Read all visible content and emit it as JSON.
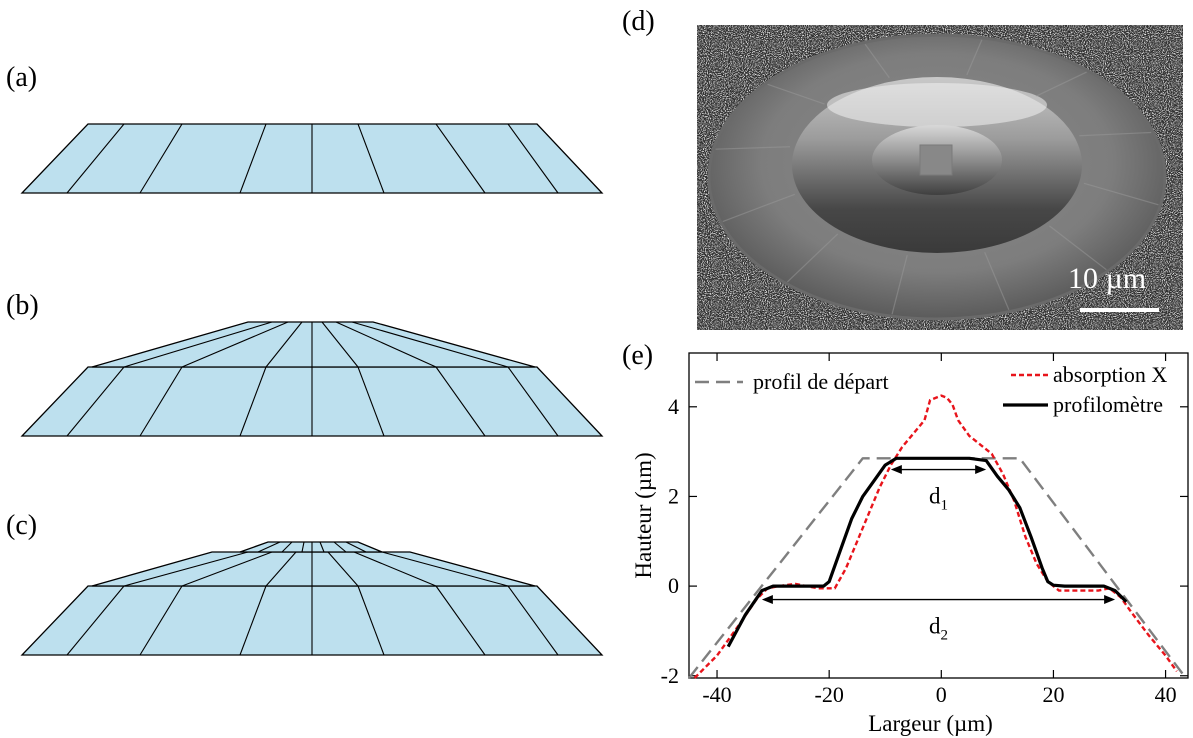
{
  "panels": {
    "a": "(a)",
    "b": "(b)",
    "c": "(c)",
    "d": "(d)",
    "e": "(e)"
  },
  "colors": {
    "frustum_fill": "#bde0ee",
    "dashed_series": "#7f7f7f",
    "red_series": "#e8141b",
    "black_series": "#000000"
  },
  "micrograph": {
    "scale_bar_label": "10 µm"
  },
  "chart_data": {
    "type": "line",
    "xlabel": "Largeur (µm)",
    "ylabel": "Hauteur (µm)",
    "xlim": [
      -45,
      44
    ],
    "ylim": [
      -2.05,
      5.2
    ],
    "xticks": [
      "-40",
      "-20",
      "0",
      "20",
      "40"
    ],
    "yticks": [
      "-2",
      "0",
      "2",
      "4"
    ],
    "legend_position": "top",
    "annotations": {
      "d1": "d",
      "d1_sub": "1",
      "d2": "d",
      "d2_sub": "2"
    },
    "series": [
      {
        "name": "profil de départ",
        "style": "dashed",
        "color": "#7f7f7f",
        "x": [
          -45,
          -14,
          14,
          43
        ],
        "y": [
          -2.05,
          2.85,
          2.85,
          -1.95
        ]
      },
      {
        "name": "absorption X",
        "style": "dotted",
        "color": "#e8141b",
        "x": [
          -44,
          -40,
          -36,
          -33,
          -31,
          -29,
          -26,
          -22,
          -19,
          -17,
          -15,
          -13,
          -11,
          -9,
          -7,
          -5,
          -3,
          -2,
          0,
          1,
          2,
          3,
          5,
          7,
          9,
          11,
          13,
          15,
          17,
          19,
          21,
          24,
          28,
          30,
          32,
          34,
          37,
          40,
          42
        ],
        "y": [
          -2.05,
          -1.55,
          -0.85,
          -0.3,
          -0.05,
          0.0,
          0.05,
          -0.05,
          -0.05,
          0.4,
          1.0,
          1.6,
          2.2,
          2.7,
          3.1,
          3.4,
          3.7,
          4.15,
          4.25,
          4.2,
          4.05,
          3.7,
          3.35,
          3.15,
          2.95,
          2.5,
          1.9,
          1.1,
          0.5,
          0.1,
          -0.1,
          -0.1,
          -0.1,
          -0.05,
          -0.25,
          -0.6,
          -1.1,
          -1.55,
          -1.9
        ]
      },
      {
        "name": "profilomètre",
        "style": "solid",
        "color": "#000000",
        "x": [
          -38,
          -35,
          -32,
          -30,
          -28,
          -25,
          -21,
          -20,
          -18,
          -16,
          -14,
          -12,
          -10,
          -8,
          -5,
          0,
          5,
          8,
          10,
          12,
          14,
          16,
          18,
          19,
          20,
          22,
          25,
          29,
          31,
          33
        ],
        "y": [
          -1.35,
          -0.65,
          -0.1,
          0.0,
          0.0,
          0.0,
          0.0,
          0.1,
          0.8,
          1.5,
          2.0,
          2.35,
          2.7,
          2.85,
          2.85,
          2.85,
          2.85,
          2.8,
          2.45,
          2.15,
          1.75,
          1.1,
          0.4,
          0.1,
          0.02,
          0.0,
          0.0,
          0.0,
          -0.1,
          -0.35
        ]
      }
    ]
  }
}
